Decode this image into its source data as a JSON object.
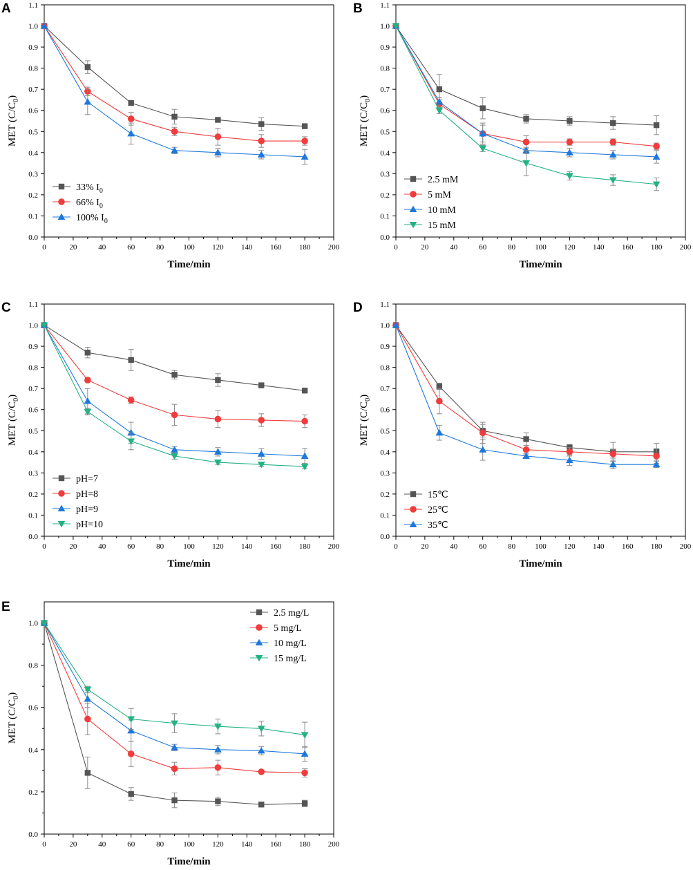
{
  "figure": {
    "subscript_zero": "0"
  },
  "chart_data": [
    {
      "panel": "A",
      "type": "line",
      "xlabel": "Time/min",
      "ylabel_main": "MET (C/C",
      "ylabel_sub": "0",
      "ylabel_close": ")",
      "xlim": [
        0,
        200
      ],
      "ylim": [
        0,
        1.1
      ],
      "xticks": [
        "0",
        "20",
        "40",
        "60",
        "80",
        "100",
        "120",
        "140",
        "160",
        "180",
        "200"
      ],
      "yticks": [
        "0.0",
        "0.1",
        "0.2",
        "0.3",
        "0.4",
        "0.5",
        "0.6",
        "0.7",
        "0.8",
        "0.9",
        "1.0",
        "1.1"
      ],
      "legend_position": "bottom-left",
      "x": [
        0,
        30,
        60,
        90,
        120,
        150,
        180
      ],
      "series": [
        {
          "name": "33% I",
          "name_sub": "0",
          "color": "#555555",
          "marker": "square",
          "values": [
            1.0,
            0.805,
            0.635,
            0.57,
            0.555,
            0.535,
            0.525
          ],
          "errors": [
            0,
            0.03,
            0.01,
            0.035,
            0.01,
            0.03,
            0.01
          ]
        },
        {
          "name": "66% I",
          "name_sub": "0",
          "color": "#f03c3c",
          "marker": "circle",
          "values": [
            1.0,
            0.69,
            0.56,
            0.5,
            0.475,
            0.455,
            0.455
          ],
          "errors": [
            0,
            0.02,
            0.03,
            0.02,
            0.04,
            0.03,
            0.02
          ]
        },
        {
          "name": "100% I",
          "name_sub": "0",
          "color": "#1e78dc",
          "marker": "triangle-up",
          "values": [
            1.0,
            0.64,
            0.49,
            0.41,
            0.4,
            0.39,
            0.38
          ],
          "errors": [
            0,
            0.06,
            0.05,
            0.015,
            0.02,
            0.02,
            0.035
          ]
        }
      ]
    },
    {
      "panel": "B",
      "type": "line",
      "xlabel": "Time/min",
      "ylabel_main": "MET (C/C",
      "ylabel_sub": "0",
      "ylabel_close": ")",
      "xlim": [
        0,
        200
      ],
      "ylim": [
        0,
        1.1
      ],
      "xticks": [
        "0",
        "20",
        "40",
        "60",
        "80",
        "100",
        "120",
        "140",
        "160",
        "180",
        "200"
      ],
      "yticks": [
        "0.0",
        "0.1",
        "0.2",
        "0.3",
        "0.4",
        "0.5",
        "0.6",
        "0.7",
        "0.8",
        "0.9",
        "1.0",
        "1.1"
      ],
      "legend_position": "bottom-left",
      "x": [
        0,
        30,
        60,
        90,
        120,
        150,
        180
      ],
      "series": [
        {
          "name": "2.5 mM",
          "color": "#555555",
          "marker": "square",
          "values": [
            1.0,
            0.7,
            0.61,
            0.56,
            0.55,
            0.54,
            0.53
          ],
          "errors": [
            0,
            0.07,
            0.05,
            0.02,
            0.02,
            0.03,
            0.045
          ]
        },
        {
          "name": "5 mM",
          "color": "#f03c3c",
          "marker": "circle",
          "values": [
            1.0,
            0.63,
            0.49,
            0.45,
            0.45,
            0.45,
            0.43
          ],
          "errors": [
            0,
            0.02,
            0.04,
            0.03,
            0.015,
            0.015,
            0.015
          ]
        },
        {
          "name": "10 mM",
          "color": "#1e78dc",
          "marker": "triangle-up",
          "values": [
            1.0,
            0.64,
            0.49,
            0.41,
            0.4,
            0.39,
            0.38
          ],
          "errors": [
            0,
            0.02,
            0.05,
            0.015,
            0.02,
            0.02,
            0.03
          ]
        },
        {
          "name": "15 mM",
          "color": "#23b283",
          "marker": "triangle-down",
          "values": [
            1.0,
            0.6,
            0.42,
            0.35,
            0.29,
            0.27,
            0.25
          ],
          "errors": [
            0,
            0.015,
            0.015,
            0.06,
            0.02,
            0.025,
            0.03
          ]
        }
      ]
    },
    {
      "panel": "C",
      "type": "line",
      "xlabel": "Time/min",
      "ylabel_main": "MET (C/C",
      "ylabel_sub": "0",
      "ylabel_close": ")",
      "xlim": [
        0,
        200
      ],
      "ylim": [
        0,
        1.1
      ],
      "xticks": [
        "0",
        "20",
        "40",
        "60",
        "80",
        "100",
        "120",
        "140",
        "160",
        "180",
        "200"
      ],
      "yticks": [
        "0.0",
        "0.1",
        "0.2",
        "0.3",
        "0.4",
        "0.5",
        "0.6",
        "0.7",
        "0.8",
        "0.9",
        "1.0",
        "1.1"
      ],
      "legend_position": "bottom-left",
      "x": [
        0,
        30,
        60,
        90,
        120,
        150,
        180
      ],
      "series": [
        {
          "name": "pH=7",
          "color": "#555555",
          "marker": "square",
          "values": [
            1.0,
            0.87,
            0.835,
            0.765,
            0.74,
            0.715,
            0.69
          ],
          "errors": [
            0,
            0.025,
            0.05,
            0.02,
            0.03,
            0.01,
            0.01
          ]
        },
        {
          "name": "pH=8",
          "color": "#f03c3c",
          "marker": "circle",
          "values": [
            1.0,
            0.74,
            0.645,
            0.575,
            0.555,
            0.55,
            0.545
          ],
          "errors": [
            0,
            0.01,
            0.015,
            0.05,
            0.04,
            0.03,
            0.03
          ]
        },
        {
          "name": "pH=9",
          "color": "#1e78dc",
          "marker": "triangle-up",
          "values": [
            1.0,
            0.64,
            0.49,
            0.41,
            0.4,
            0.39,
            0.38
          ],
          "errors": [
            0,
            0.06,
            0.05,
            0.015,
            0.02,
            0.025,
            0.035
          ]
        },
        {
          "name": "pH=10",
          "color": "#23b283",
          "marker": "triangle-down",
          "values": [
            1.0,
            0.59,
            0.45,
            0.38,
            0.35,
            0.34,
            0.33
          ],
          "errors": [
            0,
            0.015,
            0.04,
            0.015,
            0.01,
            0.01,
            0.01
          ]
        }
      ]
    },
    {
      "panel": "D",
      "type": "line",
      "xlabel": "Time/min",
      "ylabel_main": "MET (C/C",
      "ylabel_sub": "0",
      "ylabel_close": ")",
      "xlim": [
        0,
        200
      ],
      "ylim": [
        0,
        1.1
      ],
      "xticks": [
        "0",
        "20",
        "40",
        "60",
        "80",
        "100",
        "120",
        "140",
        "160",
        "180",
        "200"
      ],
      "yticks": [
        "0.0",
        "0.1",
        "0.2",
        "0.3",
        "0.4",
        "0.5",
        "0.6",
        "0.7",
        "0.8",
        "0.9",
        "1.0",
        "1.1"
      ],
      "legend_position": "bottom-left",
      "x": [
        0,
        30,
        60,
        90,
        120,
        150,
        180
      ],
      "series": [
        {
          "name": "15℃",
          "color": "#555555",
          "marker": "square",
          "values": [
            1.0,
            0.71,
            0.5,
            0.46,
            0.42,
            0.4,
            0.4
          ],
          "errors": [
            0,
            0.015,
            0.03,
            0.03,
            0.015,
            0.045,
            0.04
          ]
        },
        {
          "name": "25℃",
          "color": "#f03c3c",
          "marker": "circle",
          "values": [
            1.0,
            0.64,
            0.49,
            0.41,
            0.4,
            0.39,
            0.38
          ],
          "errors": [
            0,
            0.06,
            0.05,
            0.02,
            0.02,
            0.02,
            0.035
          ]
        },
        {
          "name": "35℃",
          "color": "#1e78dc",
          "marker": "triangle-up",
          "values": [
            1.0,
            0.49,
            0.41,
            0.38,
            0.36,
            0.34,
            0.34
          ],
          "errors": [
            0,
            0.035,
            0.05,
            0.01,
            0.025,
            0.02,
            0.015
          ]
        }
      ]
    },
    {
      "panel": "E",
      "type": "line",
      "xlabel": "Time/min",
      "ylabel_main": "MET (C/C",
      "ylabel_sub": "0",
      "ylabel_close": ")",
      "xlim": [
        0,
        200
      ],
      "ylim": [
        0,
        1.1
      ],
      "xticks": [
        "0",
        "20",
        "40",
        "60",
        "80",
        "100",
        "120",
        "140",
        "160",
        "180",
        "200"
      ],
      "yticks": [
        "0.0",
        "0.2",
        "0.4",
        "0.6",
        "0.8",
        "1.0"
      ],
      "legend_position": "top-right",
      "x": [
        0,
        30,
        60,
        90,
        120,
        150,
        180
      ],
      "series": [
        {
          "name": "2.5 mg/L",
          "color": "#555555",
          "marker": "square",
          "values": [
            1.0,
            0.29,
            0.19,
            0.16,
            0.155,
            0.14,
            0.145
          ],
          "errors": [
            0,
            0.075,
            0.03,
            0.035,
            0.02,
            0.005,
            0.015
          ]
        },
        {
          "name": "5 mg/L",
          "color": "#f03c3c",
          "marker": "circle",
          "values": [
            1.0,
            0.545,
            0.38,
            0.31,
            0.315,
            0.295,
            0.29
          ],
          "errors": [
            0,
            0.075,
            0.06,
            0.03,
            0.035,
            0.005,
            0.02
          ]
        },
        {
          "name": "10 mg/L",
          "color": "#1e78dc",
          "marker": "triangle-up",
          "values": [
            1.0,
            0.64,
            0.49,
            0.41,
            0.4,
            0.395,
            0.38
          ],
          "errors": [
            0,
            0.04,
            0.05,
            0.015,
            0.02,
            0.02,
            0.035
          ]
        },
        {
          "name": "15 mg/L",
          "color": "#23b283",
          "marker": "triangle-down",
          "values": [
            1.0,
            0.685,
            0.545,
            0.525,
            0.51,
            0.5,
            0.47
          ],
          "errors": [
            0,
            0.015,
            0.05,
            0.045,
            0.035,
            0.035,
            0.06
          ]
        }
      ]
    }
  ]
}
